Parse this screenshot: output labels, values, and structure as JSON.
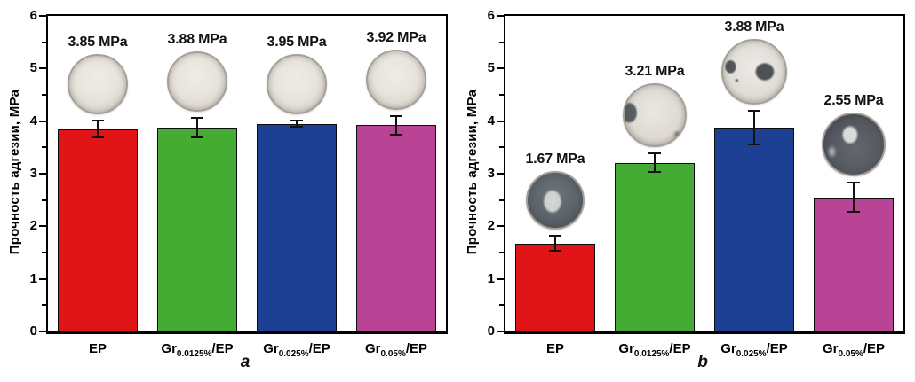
{
  "figure": {
    "panel_letters": [
      "a",
      "b"
    ],
    "background_color": "#ffffff"
  },
  "chart_data": [
    {
      "type": "bar",
      "panel": "a",
      "title": "",
      "ylabel": "Прочность адгезии, MPa",
      "xlabel": "",
      "ylim": [
        0,
        6
      ],
      "ytick_labels": [
        "0",
        "1",
        "2",
        "3",
        "4",
        "5",
        "6"
      ],
      "minor_tick_step": 0.5,
      "grid": false,
      "legend": null,
      "categories": [
        "EP",
        "Gr0.0125%/EP",
        "Gr0.025%/EP",
        "Gr0.05%/EP"
      ],
      "values": [
        3.85,
        3.88,
        3.95,
        3.92
      ],
      "errors": [
        0.18,
        0.2,
        0.08,
        0.2
      ],
      "bars": [
        {
          "category": {
            "pre": "EP",
            "sub": "",
            "suf": ""
          },
          "value": 3.85,
          "error": 0.18,
          "label": "3.85 MPa",
          "color": "#e11417",
          "specimen": {
            "style": "spec-light",
            "size": 68,
            "description": "light translucent epoxy disc"
          }
        },
        {
          "category": {
            "pre": "Gr",
            "sub": "0.0125%",
            "suf": "/EP"
          },
          "value": 3.88,
          "error": 0.2,
          "label": "3.88 MPa",
          "color": "#44ab33",
          "specimen": {
            "style": "spec-light",
            "size": 68,
            "description": "light translucent epoxy disc"
          }
        },
        {
          "category": {
            "pre": "Gr",
            "sub": "0.025%",
            "suf": "/EP"
          },
          "value": 3.95,
          "error": 0.08,
          "label": "3.95 MPa",
          "color": "#1e4094",
          "specimen": {
            "style": "spec-light",
            "size": 68,
            "description": "light translucent epoxy disc"
          }
        },
        {
          "category": {
            "pre": "Gr",
            "sub": "0.05%",
            "suf": "/EP"
          },
          "value": 3.92,
          "error": 0.2,
          "label": "3.92 MPa",
          "color": "#b94394",
          "specimen": {
            "style": "spec-light",
            "size": 68,
            "description": "light translucent epoxy disc"
          }
        }
      ]
    },
    {
      "type": "bar",
      "panel": "b",
      "title": "",
      "ylabel": "Прочность адгезии, MPa",
      "xlabel": "",
      "ylim": [
        0,
        6
      ],
      "ytick_labels": [
        "0",
        "1",
        "2",
        "3",
        "4",
        "5",
        "6"
      ],
      "minor_tick_step": 0.5,
      "grid": false,
      "legend": null,
      "categories": [
        "EP",
        "Gr0.0125%/EP",
        "Gr0.025%/EP",
        "Gr0.05%/EP"
      ],
      "values": [
        1.67,
        3.21,
        3.88,
        2.55
      ],
      "errors": [
        0.16,
        0.2,
        0.34,
        0.3
      ],
      "bars": [
        {
          "category": {
            "pre": "EP",
            "sub": "",
            "suf": ""
          },
          "value": 1.67,
          "error": 0.16,
          "label": "1.67 MPa",
          "color": "#e11417",
          "specimen": {
            "style": "spec-b-ep",
            "size": 66,
            "description": "dark disc with light central patch"
          }
        },
        {
          "category": {
            "pre": "Gr",
            "sub": "0.0125%",
            "suf": "/EP"
          },
          "value": 3.21,
          "error": 0.2,
          "label": "3.21 MPa",
          "color": "#44ab33",
          "specimen": {
            "style": "spec-b-green",
            "size": 72,
            "description": "light disc with dark patch at left edge"
          }
        },
        {
          "category": {
            "pre": "Gr",
            "sub": "0.025%",
            "suf": "/EP"
          },
          "value": 3.88,
          "error": 0.34,
          "label": "3.88 MPa",
          "color": "#1e4094",
          "specimen": {
            "style": "spec-b-blue",
            "size": 74,
            "description": "light disc with two dark patches"
          }
        },
        {
          "category": {
            "pre": "Gr",
            "sub": "0.05%",
            "suf": "/EP"
          },
          "value": 2.55,
          "error": 0.3,
          "label": "2.55 MPa",
          "color": "#b94394",
          "specimen": {
            "style": "spec-b-magenta",
            "size": 72,
            "description": "dark disc with light upper patch"
          }
        }
      ]
    }
  ]
}
